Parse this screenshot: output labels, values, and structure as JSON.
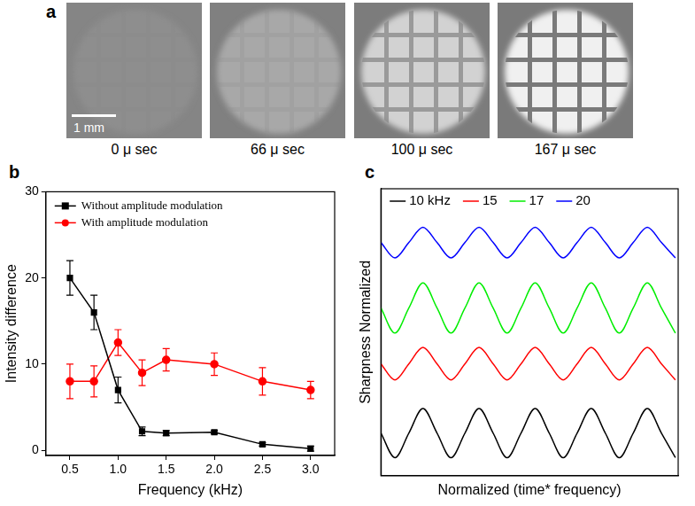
{
  "panel_a": {
    "panel": "a",
    "scale_bar": "1 mm",
    "captions": [
      "0 μ sec",
      "66 μ sec",
      "100 μ sec",
      "167 μ sec"
    ]
  },
  "chart_data": [
    {
      "panel": "b",
      "type": "line",
      "x_label": "Frequency (kHz)",
      "y_label": "Intensity difference",
      "x": [
        0.5,
        0.75,
        1.0,
        1.25,
        1.5,
        2.0,
        2.5,
        3.0
      ],
      "series": [
        {
          "name": "Without amplitude modulation",
          "color": "#000000",
          "marker": "square",
          "line_style": "solid",
          "values": [
            20,
            16,
            7,
            2.2,
            2.0,
            2.1,
            0.7,
            0.2
          ],
          "errors": [
            2,
            2,
            1.5,
            0.5,
            0.3,
            0.2,
            0.2,
            0.3
          ]
        },
        {
          "name": "With amplitude modulation",
          "color": "#ff0000",
          "marker": "circle",
          "line_style": "solid",
          "values": [
            8,
            8,
            12.5,
            9,
            10.5,
            10,
            8,
            7
          ],
          "errors": [
            2,
            1.8,
            1.5,
            1.5,
            1.3,
            1.3,
            1.6,
            1
          ]
        }
      ],
      "xlim": [
        0.25,
        3.25
      ],
      "xticks": [
        0.5,
        {
          "value": 1,
          "label": "1.0"
        },
        1.5,
        {
          "value": 2,
          "label": "2.0"
        },
        2.5,
        {
          "value": 3,
          "label": "3.0"
        }
      ],
      "ylim": [
        -0.6,
        30
      ],
      "yticks": [
        0,
        10,
        20,
        30
      ],
      "legend": "upper left",
      "grid": false
    },
    {
      "panel": "c",
      "type": "line",
      "x_label": "Normalized (time* frequency)",
      "y_label": "Sharpness Normalized",
      "x": [
        0,
        0.25,
        0.5,
        0.75,
        1,
        1.25,
        1.5,
        1.75,
        2,
        2.25,
        2.5,
        2.75,
        3,
        3.25,
        3.5,
        3.75,
        4,
        4.25,
        4.5,
        4.75,
        5,
        5.25
      ],
      "series": [
        {
          "name": "10 kHz",
          "color": "#000000",
          "marker": "none",
          "line_style": "solid",
          "values": [
            1.49,
            0.63,
            1.49,
            2.34,
            1.49,
            0.63,
            1.49,
            2.34,
            1.49,
            0.63,
            1.49,
            2.34,
            1.49,
            0.63,
            1.49,
            2.34,
            1.49,
            0.63,
            1.49,
            2.34,
            1.49,
            0.63
          ]
        },
        {
          "name": "15",
          "color": "#ff0000",
          "marker": "none",
          "line_style": "solid",
          "values": [
            3.9,
            3.34,
            3.9,
            4.47,
            3.9,
            3.34,
            3.9,
            4.47,
            3.9,
            3.34,
            3.9,
            4.47,
            3.9,
            3.34,
            3.9,
            4.47,
            3.9,
            3.34,
            3.9,
            4.47,
            3.9,
            3.34
          ]
        },
        {
          "name": "17",
          "color": "#00ee00",
          "marker": "none",
          "line_style": "solid",
          "values": [
            5.85,
            4.97,
            5.85,
            6.72,
            5.85,
            4.97,
            5.85,
            6.72,
            5.85,
            4.97,
            5.85,
            6.72,
            5.85,
            4.97,
            5.85,
            6.72,
            5.85,
            4.97,
            5.85,
            6.72,
            5.85,
            4.97
          ]
        },
        {
          "name": "20",
          "color": "#0000ff",
          "marker": "none",
          "line_style": "solid",
          "values": [
            8.13,
            7.59,
            8.13,
            8.66,
            8.13,
            7.59,
            8.13,
            8.66,
            8.13,
            7.59,
            8.13,
            8.66,
            8.13,
            7.59,
            8.13,
            8.66,
            8.13,
            7.59,
            8.13,
            8.66,
            8.13,
            7.59
          ]
        }
      ],
      "xlim": [
        0,
        5.3
      ],
      "ylim": [
        0,
        10
      ],
      "tick_labels": false,
      "legend": "top",
      "grid": false
    }
  ]
}
